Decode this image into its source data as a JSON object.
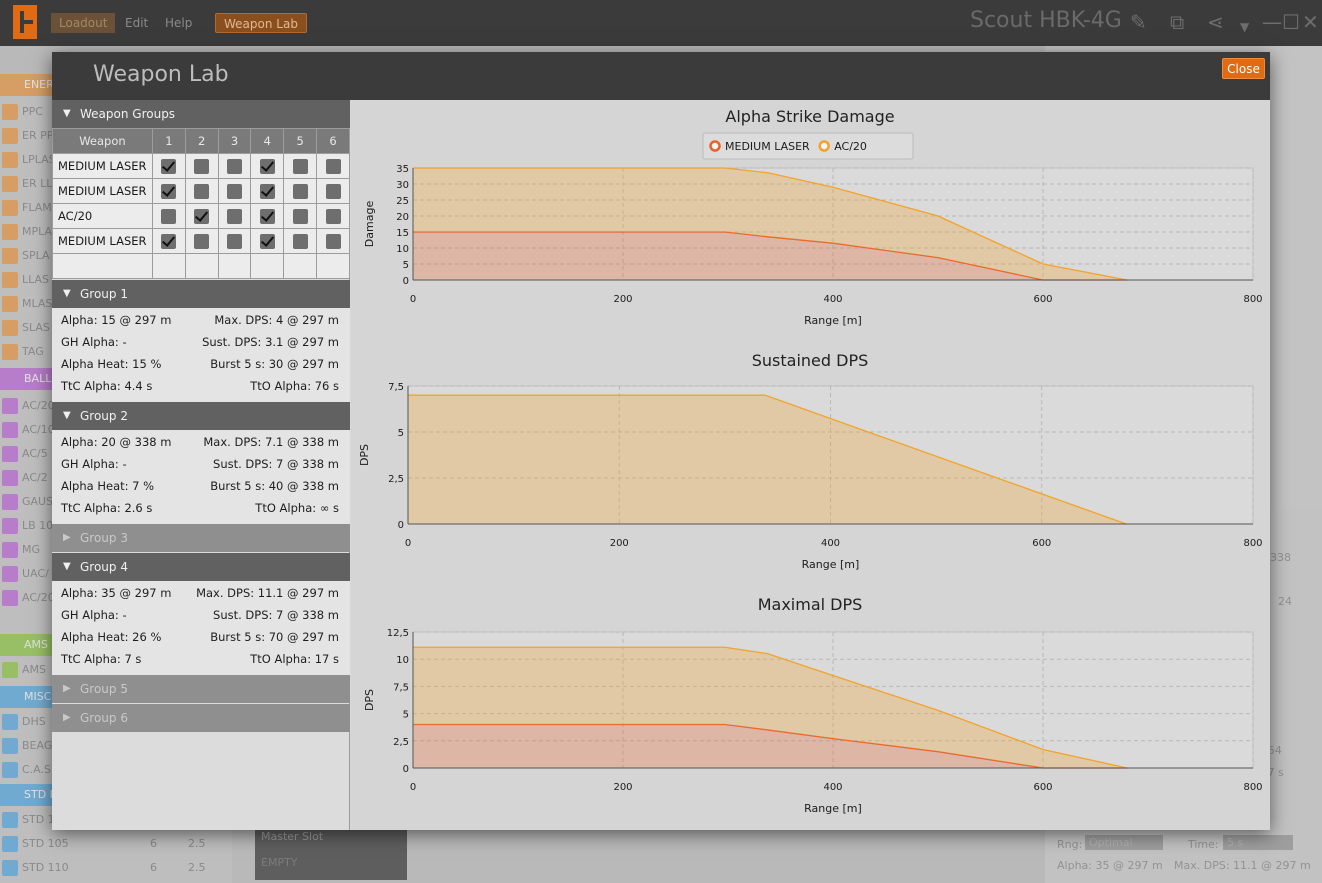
{
  "topbar": {
    "menu": [
      "Loadout",
      "Edit",
      "Help",
      "Weapon Lab"
    ],
    "loadout_name": "Scout HBK-4G"
  },
  "icons": {
    "edit": "pencil-icon",
    "compare": "compare-icon",
    "share": "share-icon",
    "dropdown": "chevron-down-icon",
    "minimize": "minimize-icon",
    "maximize": "maximize-icon",
    "close": "close-icon"
  },
  "colors": {
    "accent": "#e06b12",
    "medium_laser": "#e8622a",
    "ac20": "#f2a32a"
  },
  "background": {
    "categories": [
      {
        "label": "ENER",
        "color": "#e0944a"
      },
      {
        "label": "BALL",
        "color": "#b86ad0"
      },
      {
        "label": "AMS",
        "color": "#8dc24a"
      },
      {
        "label": "MISC",
        "color": "#5aa6d8"
      },
      {
        "label": "STD E",
        "color": "#5aa6d8"
      }
    ],
    "items": [
      "PPC",
      "ER PP",
      "LPLAS",
      "ER LL",
      "FLAM",
      "MPLA",
      "SPLA",
      "LLAS",
      "MLAS",
      "SLAS",
      "TAG",
      "AC/20",
      "AC/10",
      "AC/5",
      "AC/2",
      "GAUS",
      "LB 10",
      "MG",
      "UAC/",
      "AC/20",
      "AMS",
      "DHS",
      "BEAG",
      "C.A.S",
      "STD 1",
      "STD 105",
      "STD 110"
    ],
    "std_rows": [
      {
        "name": "STD 105",
        "tons": "6",
        "crit": "2.5"
      },
      {
        "name": "STD 110",
        "tons": "6",
        "crit": "2.5"
      }
    ],
    "master_slot": "Master Slot",
    "master_value": "EMPTY",
    "right_panel": {
      "rng_label": "Rng:",
      "rng_value": "Optimal",
      "time_label": "Time:",
      "time_value": "5 s",
      "alpha": "Alpha: 35 @ 297 m",
      "max_dps": "Max. DPS: 11.1 @ 297 m",
      "side_a": "338",
      "side_b": "24",
      "side_c": "y: 54",
      "side_d": "5.7 s"
    }
  },
  "dialog": {
    "title": "Weapon Lab",
    "close_label": "Close",
    "weapon_groups": {
      "header": "Weapon Groups",
      "columns": [
        "Weapon",
        "1",
        "2",
        "3",
        "4",
        "5",
        "6"
      ],
      "rows": [
        {
          "weapon": "MEDIUM LASER",
          "groups": [
            true,
            false,
            false,
            true,
            false,
            false
          ]
        },
        {
          "weapon": "MEDIUM LASER",
          "groups": [
            true,
            false,
            false,
            true,
            false,
            false
          ]
        },
        {
          "weapon": "AC/20",
          "groups": [
            false,
            true,
            false,
            true,
            false,
            false
          ]
        },
        {
          "weapon": "MEDIUM LASER",
          "groups": [
            true,
            false,
            false,
            true,
            false,
            false
          ]
        }
      ]
    },
    "groups": [
      {
        "name": "Group 1",
        "alpha": "Alpha: 15 @ 297 m",
        "max_dps": "Max. DPS: 4 @ 297 m",
        "gh_alpha": "GH Alpha: -",
        "sust_dps": "Sust. DPS: 3.1 @ 297 m",
        "alpha_heat": "Alpha Heat: 15 %",
        "burst": "Burst 5 s: 30 @ 297 m",
        "ttc": "TtC Alpha: 4.4 s",
        "tto": "TtO Alpha: 76 s"
      },
      {
        "name": "Group 2",
        "alpha": "Alpha: 20 @ 338 m",
        "max_dps": "Max. DPS: 7.1 @ 338 m",
        "gh_alpha": "GH Alpha: -",
        "sust_dps": "Sust. DPS: 7 @ 338 m",
        "alpha_heat": "Alpha Heat: 7 %",
        "burst": "Burst 5 s: 40 @ 338 m",
        "ttc": "TtC Alpha: 2.6 s",
        "tto": "TtO Alpha: ∞ s"
      },
      {
        "name": "Group 3"
      },
      {
        "name": "Group 4",
        "alpha": "Alpha: 35 @ 297 m",
        "max_dps": "Max. DPS: 11.1 @ 297 m",
        "gh_alpha": "GH Alpha: -",
        "sust_dps": "Sust. DPS: 7 @ 338 m",
        "alpha_heat": "Alpha Heat: 26 %",
        "burst": "Burst 5 s: 70 @ 297 m",
        "ttc": "TtC Alpha: 7 s",
        "tto": "TtO Alpha: 17 s"
      },
      {
        "name": "Group 5"
      },
      {
        "name": "Group 6"
      }
    ]
  },
  "chart_data": [
    {
      "type": "area",
      "title": "Alpha Strike Damage",
      "xlabel": "Range [m]",
      "ylabel": "Damage",
      "xlim": [
        0,
        800
      ],
      "ylim": [
        0,
        35
      ],
      "xticks": [
        "0",
        "200",
        "400",
        "600",
        "800"
      ],
      "yticks": [
        "0",
        "5",
        "10",
        "15",
        "20",
        "25",
        "30",
        "35"
      ],
      "legend": "top-center",
      "stacked": true,
      "series": [
        {
          "name": "MEDIUM LASER",
          "color": "#e8622a",
          "x": [
            0,
            297,
            338,
            400,
            500,
            600,
            680
          ],
          "y": [
            15,
            15,
            13.5,
            11.5,
            7,
            0,
            0
          ]
        },
        {
          "name": "AC/20",
          "color": "#f2a32a",
          "x": [
            0,
            297,
            338,
            400,
            500,
            600,
            680
          ],
          "y": [
            20,
            20,
            20,
            17.5,
            13,
            5,
            0
          ]
        }
      ]
    },
    {
      "type": "area",
      "title": "Sustained DPS",
      "xlabel": "Range [m]",
      "ylabel": "DPS",
      "xlim": [
        0,
        800
      ],
      "ylim": [
        0,
        7.5
      ],
      "xticks": [
        "0",
        "200",
        "400",
        "600",
        "800"
      ],
      "yticks": [
        "0",
        "2,5",
        "5",
        "7,5"
      ],
      "series": [
        {
          "name": "AC/20",
          "color": "#f2a32a",
          "x": [
            0,
            338,
            680
          ],
          "y": [
            7,
            7,
            0
          ]
        }
      ]
    },
    {
      "type": "area",
      "title": "Maximal DPS",
      "xlabel": "Range [m]",
      "ylabel": "DPS",
      "xlim": [
        0,
        800
      ],
      "ylim": [
        0,
        12.5
      ],
      "xticks": [
        "0",
        "200",
        "400",
        "600",
        "800"
      ],
      "yticks": [
        "0",
        "2,5",
        "5",
        "7,5",
        "10",
        "12,5"
      ],
      "stacked": true,
      "series": [
        {
          "name": "MEDIUM LASER",
          "color": "#e8622a",
          "x": [
            0,
            297,
            338,
            400,
            500,
            600,
            680
          ],
          "y": [
            4,
            4,
            3.5,
            2.7,
            1.5,
            0,
            0
          ]
        },
        {
          "name": "AC/20",
          "color": "#f2a32a",
          "x": [
            0,
            297,
            338,
            400,
            500,
            600,
            680
          ],
          "y": [
            7.1,
            7.1,
            7,
            5.8,
            3.8,
            1.7,
            0
          ]
        }
      ]
    }
  ]
}
